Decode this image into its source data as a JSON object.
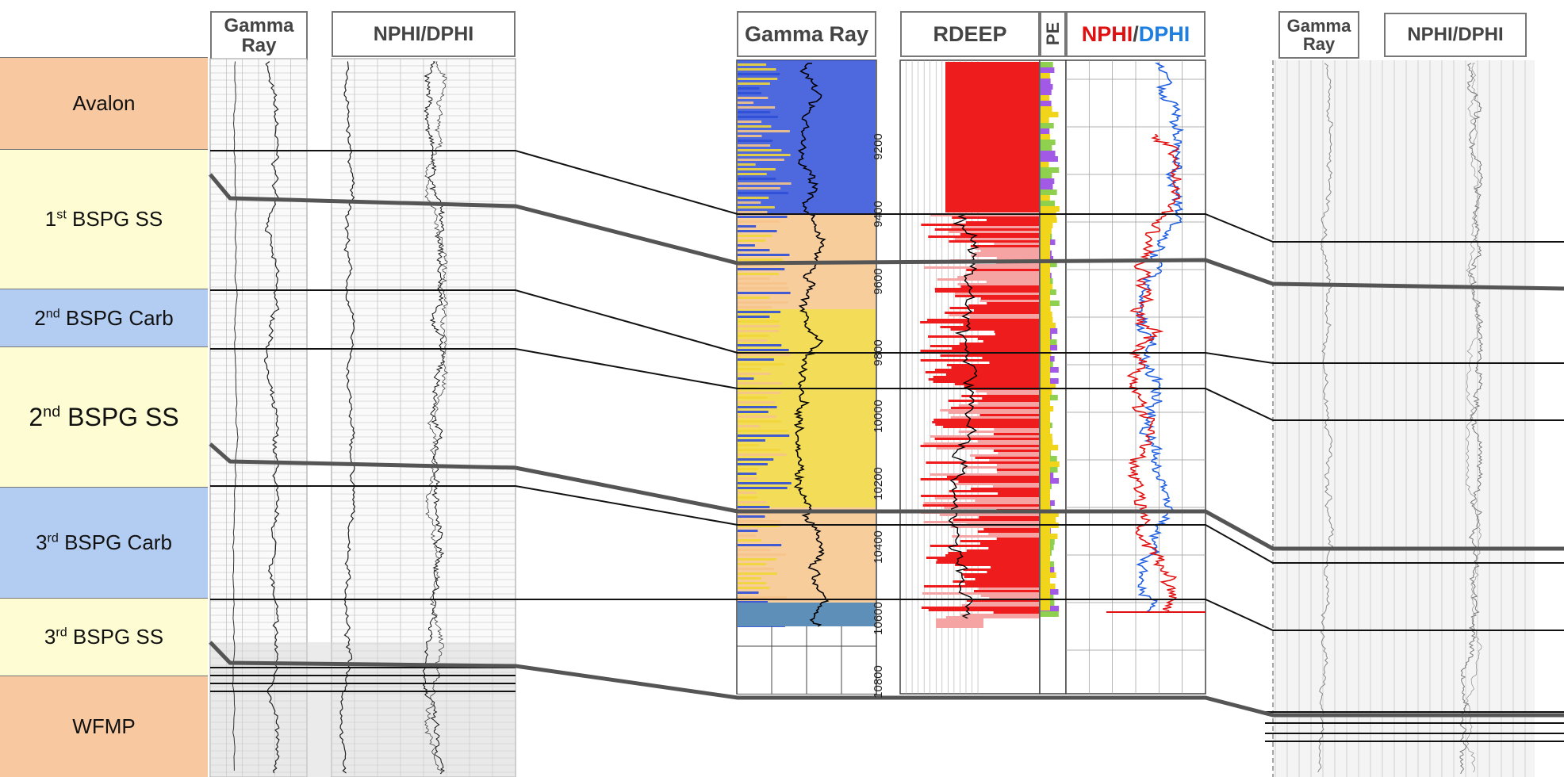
{
  "zones": [
    {
      "name": "Avalon",
      "sup": "",
      "base": "",
      "color": "#f8c9a0",
      "size": "normal"
    },
    {
      "name": "1",
      "sup": "st",
      "base": " BSPG SS",
      "color": "#fdfcd3",
      "size": "normal"
    },
    {
      "name": "2",
      "sup": "nd",
      "base": " BSPG Carb",
      "color": "#b3cdf2",
      "size": "normal"
    },
    {
      "name": "2",
      "sup": "nd",
      "base": " BSPG SS",
      "color": "#fdfcd3",
      "size": "big"
    },
    {
      "name": "3",
      "sup": "rd",
      "base": " BSPG Carb",
      "color": "#b3cdf2",
      "size": "normal"
    },
    {
      "name": "3",
      "sup": "rd",
      "base": " BSPG SS",
      "color": "#fdfcd3",
      "size": "normal"
    },
    {
      "name": "WFMP",
      "sup": "",
      "base": "",
      "color": "#f8c9a0",
      "size": "normal"
    }
  ],
  "left_well": {
    "gamma_header": [
      "Gamma",
      "Ray"
    ],
    "nphi_header": "NPHI/DPHI"
  },
  "center_well": {
    "gamma_header": "Gamma Ray",
    "rdeep_header": "RDEEP",
    "pe_header": "PE",
    "nphi_header_red": "NPHI",
    "nphi_header_sep": "/",
    "nphi_header_blue": "DPHI",
    "depths": [
      "9200",
      "9400",
      "9600",
      "9800",
      "10000",
      "10200",
      "10400",
      "10600",
      "10800"
    ]
  },
  "right_well": {
    "gamma_header": [
      "Gamma",
      "Ray"
    ],
    "nphi_header": "NPHI/DPHI"
  },
  "colors": {
    "gr_blue": "#2f4fd8",
    "gr_yellow": "#f1d63a",
    "gr_orange": "#f6c489",
    "rdeep_red": "#ee1c1c",
    "rdeep_pink": "#f6a3a3",
    "nphi_red": "#e01010",
    "dphi_blue": "#1f5fe0",
    "correlation_line": "#555555"
  }
}
